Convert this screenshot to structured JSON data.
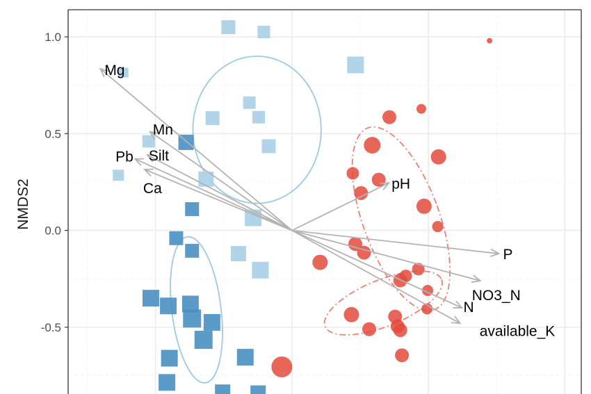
{
  "chart_data": {
    "type": "scatter",
    "ylabel": "NMDS2",
    "xlabel": "",
    "xlim": [
      -0.82,
      1.06
    ],
    "ylim": [
      -0.87,
      1.14
    ],
    "y_ticks": [
      {
        "value": 1.0,
        "label": "1.0"
      },
      {
        "value": 0.5,
        "label": "0.5"
      },
      {
        "value": 0.0,
        "label": "0.0"
      },
      {
        "value": -0.5,
        "label": "-0.5"
      }
    ],
    "x_major_gridlines": [
      -0.5,
      0.0,
      0.5,
      1.0
    ],
    "grid": true,
    "colors": {
      "light_blue": "#a9cfe5",
      "dark_blue": "#4a8fc2",
      "red": "#e34a3c",
      "ellipse_blue": "#9ec9e2",
      "ellipse_red": "#ec7f75",
      "arrow": "#b3b3b3",
      "panel_border": "#333333",
      "grid_major": "#ebebeb",
      "grid_minor": "#f4f4f4"
    },
    "series": [
      {
        "marker": "square",
        "color": "#a9cfe5",
        "points": [
          {
            "x": -0.233,
            "y": 1.05,
            "size": 1.0
          },
          {
            "x": -0.103,
            "y": 1.025,
            "size": 0.9
          },
          {
            "x": -0.617,
            "y": 0.815,
            "size": 0.7
          },
          {
            "x": 0.233,
            "y": 0.855,
            "size": 1.2
          },
          {
            "x": -0.156,
            "y": 0.66,
            "size": 0.9
          },
          {
            "x": -0.122,
            "y": 0.585,
            "size": 0.9
          },
          {
            "x": -0.291,
            "y": 0.58,
            "size": 1.0
          },
          {
            "x": -0.085,
            "y": 0.435,
            "size": 1.0
          },
          {
            "x": -0.525,
            "y": 0.46,
            "size": 0.9
          },
          {
            "x": -0.636,
            "y": 0.285,
            "size": 0.8
          },
          {
            "x": -0.315,
            "y": 0.265,
            "size": 1.1
          },
          {
            "x": -0.142,
            "y": 0.065,
            "size": 1.2
          },
          {
            "x": -0.196,
            "y": -0.12,
            "size": 1.1
          },
          {
            "x": -0.116,
            "y": -0.205,
            "size": 1.2
          }
        ]
      },
      {
        "marker": "square",
        "color": "#4a8fc2",
        "points": [
          {
            "x": -0.388,
            "y": 0.455,
            "size": 1.1
          },
          {
            "x": -0.366,
            "y": 0.11,
            "size": 1.0
          },
          {
            "x": -0.424,
            "y": -0.04,
            "size": 1.0
          },
          {
            "x": -0.366,
            "y": -0.105,
            "size": 1.0
          },
          {
            "x": -0.517,
            "y": -0.35,
            "size": 1.2
          },
          {
            "x": -0.453,
            "y": -0.39,
            "size": 1.2
          },
          {
            "x": -0.372,
            "y": -0.38,
            "size": 1.2
          },
          {
            "x": -0.366,
            "y": -0.455,
            "size": 1.3
          },
          {
            "x": -0.293,
            "y": -0.475,
            "size": 1.2
          },
          {
            "x": -0.324,
            "y": -0.565,
            "size": 1.3
          },
          {
            "x": -0.449,
            "y": -0.66,
            "size": 1.2
          },
          {
            "x": -0.171,
            "y": -0.655,
            "size": 1.2
          },
          {
            "x": -0.458,
            "y": -0.785,
            "size": 1.2
          },
          {
            "x": -0.254,
            "y": -0.835,
            "size": 1.1
          },
          {
            "x": -0.124,
            "y": -0.84,
            "size": 1.1
          }
        ]
      },
      {
        "marker": "circle",
        "color": "#e34a3c",
        "points": [
          {
            "x": 0.724,
            "y": 0.98,
            "size": 0.4
          },
          {
            "x": 0.474,
            "y": 0.628,
            "size": 0.7
          },
          {
            "x": 0.357,
            "y": 0.585,
            "size": 1.0
          },
          {
            "x": 0.294,
            "y": 0.44,
            "size": 1.2
          },
          {
            "x": 0.537,
            "y": 0.38,
            "size": 1.1
          },
          {
            "x": 0.223,
            "y": 0.295,
            "size": 0.9
          },
          {
            "x": 0.318,
            "y": 0.262,
            "size": 1.0
          },
          {
            "x": 0.253,
            "y": 0.193,
            "size": 1.0
          },
          {
            "x": 0.484,
            "y": 0.125,
            "size": 1.1
          },
          {
            "x": 0.534,
            "y": 0.02,
            "size": 0.8
          },
          {
            "x": 0.232,
            "y": -0.07,
            "size": 1.0
          },
          {
            "x": 0.264,
            "y": -0.115,
            "size": 1.0
          },
          {
            "x": 0.103,
            "y": -0.165,
            "size": 1.1
          },
          {
            "x": 0.463,
            "y": -0.2,
            "size": 0.9
          },
          {
            "x": 0.417,
            "y": -0.235,
            "size": 0.9
          },
          {
            "x": 0.397,
            "y": -0.258,
            "size": 1.0
          },
          {
            "x": 0.497,
            "y": -0.31,
            "size": 0.8
          },
          {
            "x": 0.495,
            "y": -0.405,
            "size": 0.8
          },
          {
            "x": 0.218,
            "y": -0.435,
            "size": 1.1
          },
          {
            "x": 0.378,
            "y": -0.445,
            "size": 1.0
          },
          {
            "x": 0.387,
            "y": -0.495,
            "size": 1.0
          },
          {
            "x": 0.283,
            "y": -0.51,
            "size": 1.0
          },
          {
            "x": 0.397,
            "y": -0.515,
            "size": 1.0
          },
          {
            "x": 0.403,
            "y": -0.645,
            "size": 1.0
          },
          {
            "x": -0.037,
            "y": -0.705,
            "size": 1.5
          }
        ]
      }
    ],
    "vectors": [
      {
        "label": "Mg",
        "x": -0.702,
        "y": 0.835
      },
      {
        "label": "Mn",
        "x": -0.52,
        "y": 0.51
      },
      {
        "label": "Silt",
        "x": -0.53,
        "y": 0.39
      },
      {
        "label": "Pb",
        "x": -0.575,
        "y": 0.37
      },
      {
        "label": "Ca",
        "x": -0.54,
        "y": 0.315
      },
      {
        "label": "pH",
        "x": 0.355,
        "y": 0.245
      },
      {
        "label": "P",
        "x": 0.758,
        "y": -0.12
      },
      {
        "label": "NO3_N",
        "x": 0.69,
        "y": -0.26
      },
      {
        "label": "N",
        "x": 0.623,
        "y": -0.4
      },
      {
        "label": "available_K",
        "x": 0.616,
        "y": -0.48
      }
    ],
    "ellipses": [
      {
        "color": "#9ec9e2",
        "style": "solid",
        "cx": -0.128,
        "cy": 0.52,
        "rx": 0.235,
        "ry": 0.38,
        "angle": 0
      },
      {
        "color": "#9ec9e2",
        "style": "solid",
        "cx": -0.35,
        "cy": -0.41,
        "rx": 0.09,
        "ry": 0.38,
        "angle": 7
      },
      {
        "color": "#ec7f75",
        "style": "dashdot",
        "cx": 0.4,
        "cy": 0.06,
        "rx": 0.14,
        "ry": 0.5,
        "angle": 20
      },
      {
        "color": "#ec7f75",
        "style": "dashdot",
        "cx": 0.335,
        "cy": -0.375,
        "rx": 0.23,
        "ry": 0.12,
        "angle": 22
      }
    ]
  }
}
